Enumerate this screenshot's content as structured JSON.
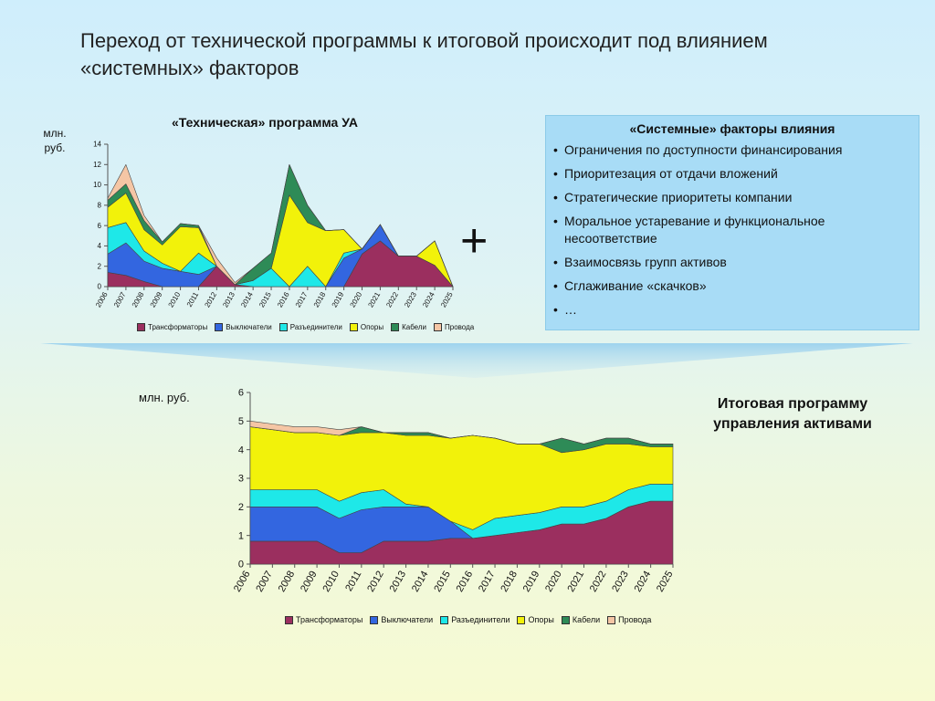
{
  "slide": {
    "title": "Переход от технической программы к итоговой происходит под влиянием «системных» факторов",
    "plus": "+",
    "final_label": "Итоговая программу управления активами"
  },
  "factors": {
    "title": "«Системные» факторы влияния",
    "items": [
      "Ограничения по доступности финансирования",
      "Приоритезация от отдачи вложений",
      "Стратегические приоритеты компании",
      "Моральное устаревание и функциональное несоответствие",
      "Взаимосвязь групп активов",
      "Сглаживание «скачков»",
      "…"
    ]
  },
  "colors": {
    "transformers": "#9b2f5f",
    "breakers": "#3366e0",
    "disconnectors": "#1ee8e8",
    "supports": "#f2f20a",
    "cables": "#2e8b57",
    "wires": "#f5c6a5"
  },
  "chart_data": [
    {
      "type": "area",
      "stacked": true,
      "title": "«Техническая» программа УА",
      "ylabel": "млн. руб.",
      "ylim": [
        0,
        14
      ],
      "yticks": [
        0,
        2,
        4,
        6,
        8,
        10,
        12,
        14
      ],
      "x": [
        "2006",
        "2007",
        "2008",
        "2009",
        "2010",
        "2011",
        "2012",
        "2013",
        "2014",
        "2015",
        "2016",
        "2017",
        "2018",
        "2019",
        "2020",
        "2021",
        "2022",
        "2023",
        "2024",
        "2025"
      ],
      "series": [
        {
          "name": "Трансформаторы",
          "values": [
            1.4,
            1.1,
            0.5,
            0,
            0,
            0,
            2.0,
            0.2,
            0,
            0,
            0,
            0,
            0,
            0,
            3.2,
            4.5,
            3.0,
            3.0,
            2.1,
            0
          ]
        },
        {
          "name": "Выключатели",
          "values": [
            1.8,
            3.2,
            2.0,
            1.8,
            1.5,
            1.2,
            0,
            0,
            0,
            0,
            0,
            0,
            0,
            2.8,
            0.5,
            1.6,
            0,
            0,
            0,
            0
          ]
        },
        {
          "name": "Разъединители",
          "values": [
            2.6,
            2.0,
            1.0,
            0.5,
            0,
            2.1,
            0,
            0,
            0.6,
            1.8,
            0,
            2.0,
            0,
            0.5,
            0,
            0,
            0,
            0,
            0,
            0
          ]
        },
        {
          "name": "Опоры",
          "values": [
            2.0,
            2.9,
            2.1,
            1.8,
            4.4,
            2.5,
            0,
            0,
            0,
            0,
            9.0,
            4.3,
            5.5,
            2.3,
            0,
            0,
            0,
            0,
            2.4,
            0
          ]
        },
        {
          "name": "Кабели",
          "values": [
            0.7,
            0.9,
            0.9,
            0.3,
            0.3,
            0.2,
            0,
            0,
            1.2,
            1.5,
            3.0,
            1.7,
            0,
            0,
            0,
            0,
            0,
            0,
            0,
            0
          ]
        },
        {
          "name": "Провода",
          "values": [
            0.2,
            1.9,
            0.5,
            0,
            0,
            0,
            0.8,
            0.2,
            0,
            0,
            0,
            0,
            0,
            0,
            0,
            0,
            0,
            0,
            0,
            0
          ]
        }
      ]
    },
    {
      "type": "area",
      "stacked": true,
      "ylabel": "млн. руб.",
      "ylim": [
        0,
        6
      ],
      "yticks": [
        0,
        1,
        2,
        3,
        4,
        5,
        6
      ],
      "x": [
        "2006",
        "2007",
        "2008",
        "2009",
        "2010",
        "2011",
        "2012",
        "2013",
        "2014",
        "2015",
        "2016",
        "2017",
        "2018",
        "2019",
        "2020",
        "2021",
        "2022",
        "2023",
        "2024",
        "2025"
      ],
      "series": [
        {
          "name": "Трансформаторы",
          "values": [
            0.8,
            0.8,
            0.8,
            0.8,
            0.4,
            0.4,
            0.8,
            0.8,
            0.8,
            0.9,
            0.9,
            1.0,
            1.1,
            1.2,
            1.4,
            1.4,
            1.6,
            2.0,
            2.2,
            2.2
          ]
        },
        {
          "name": "Выключатели",
          "values": [
            1.2,
            1.2,
            1.2,
            1.2,
            1.2,
            1.5,
            1.2,
            1.2,
            1.2,
            0.6,
            0,
            0,
            0,
            0,
            0,
            0,
            0,
            0,
            0,
            0
          ]
        },
        {
          "name": "Разъединители",
          "values": [
            0.6,
            0.6,
            0.6,
            0.6,
            0.6,
            0.6,
            0.6,
            0.1,
            0,
            0,
            0.3,
            0.6,
            0.6,
            0.6,
            0.6,
            0.6,
            0.6,
            0.6,
            0.6,
            0.6
          ]
        },
        {
          "name": "Опоры",
          "values": [
            2.2,
            2.1,
            2.0,
            2.0,
            2.3,
            2.1,
            2.0,
            2.4,
            2.5,
            2.9,
            3.3,
            2.8,
            2.5,
            2.4,
            1.9,
            2.0,
            2.0,
            1.6,
            1.3,
            1.3
          ]
        },
        {
          "name": "Кабели",
          "values": [
            0,
            0,
            0,
            0,
            0,
            0.2,
            0,
            0.1,
            0.1,
            0,
            0,
            0,
            0,
            0,
            0.5,
            0.2,
            0.2,
            0.2,
            0.1,
            0.1
          ]
        },
        {
          "name": "Провода",
          "values": [
            0.2,
            0.2,
            0.2,
            0.2,
            0.2,
            0,
            0,
            0,
            0,
            0,
            0,
            0,
            0,
            0,
            0,
            0,
            0,
            0,
            0,
            0
          ]
        }
      ]
    }
  ]
}
